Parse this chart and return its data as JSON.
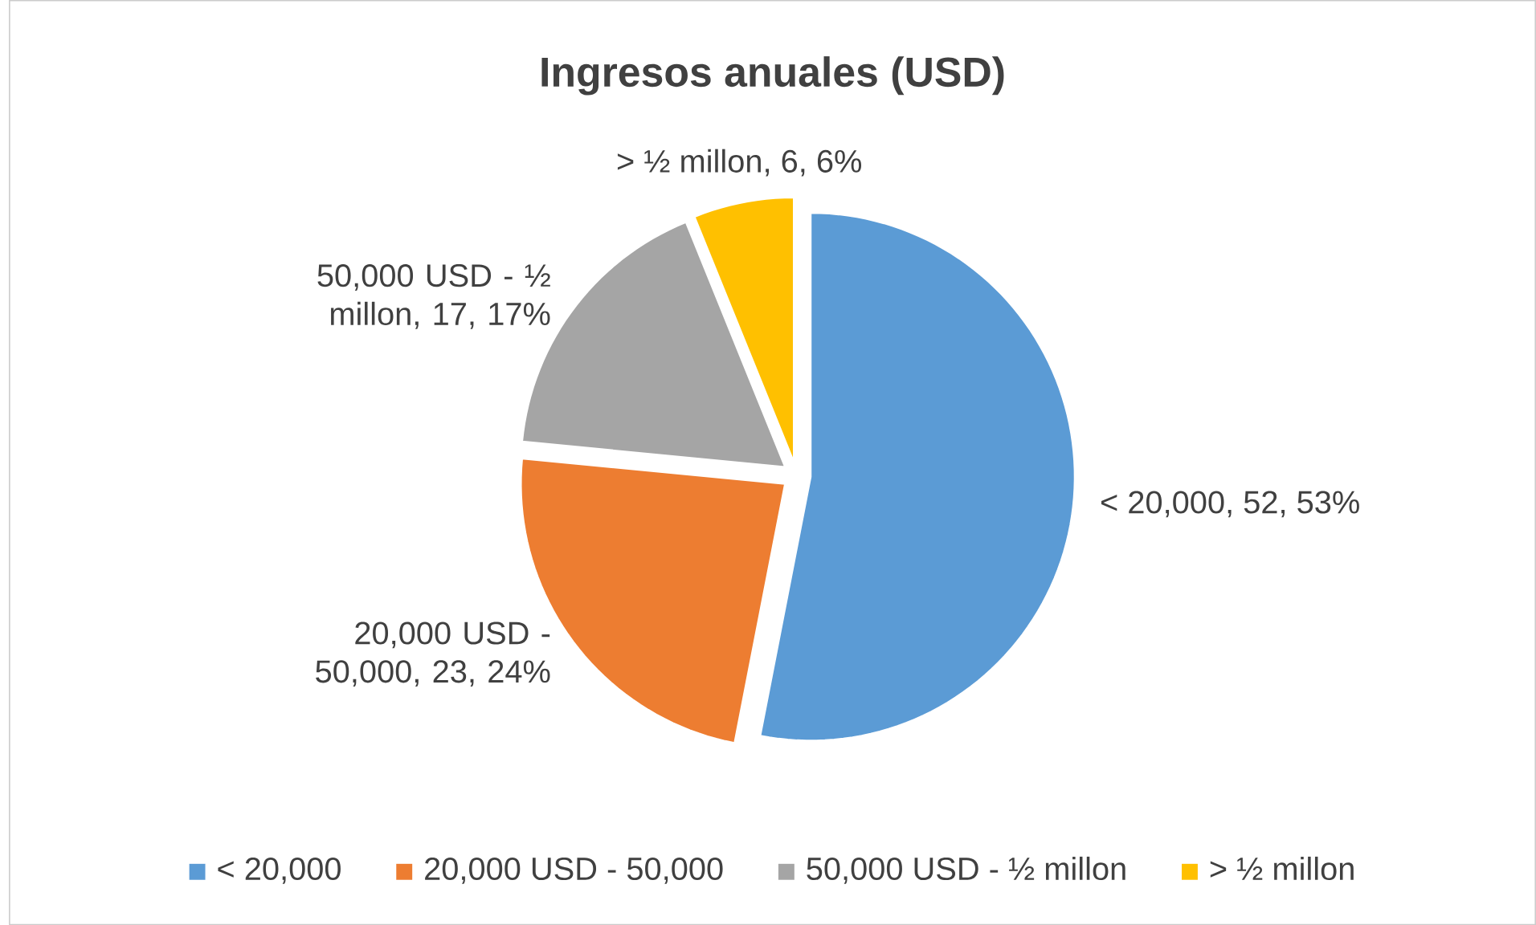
{
  "chart_data": {
    "type": "pie",
    "title": "Ingresos anuales (USD)",
    "categories": [
      "< 20,000",
      "20,000 USD - 50,000",
      "50,000 USD -  ½ millon",
      "> ½ millon"
    ],
    "values": [
      52,
      23,
      17,
      6
    ],
    "colors": [
      "#5b9bd5",
      "#ed7d31",
      "#a5a5a5",
      "#ffc000"
    ],
    "value_labels": [
      "< 20,000, 52, 53%",
      "20,000 USD - 50,000, 23, 24%",
      "50,000 USD -  ½ millon, 17, 17%",
      "> ½ millon, 6, 6%"
    ],
    "legend": "bottom"
  }
}
